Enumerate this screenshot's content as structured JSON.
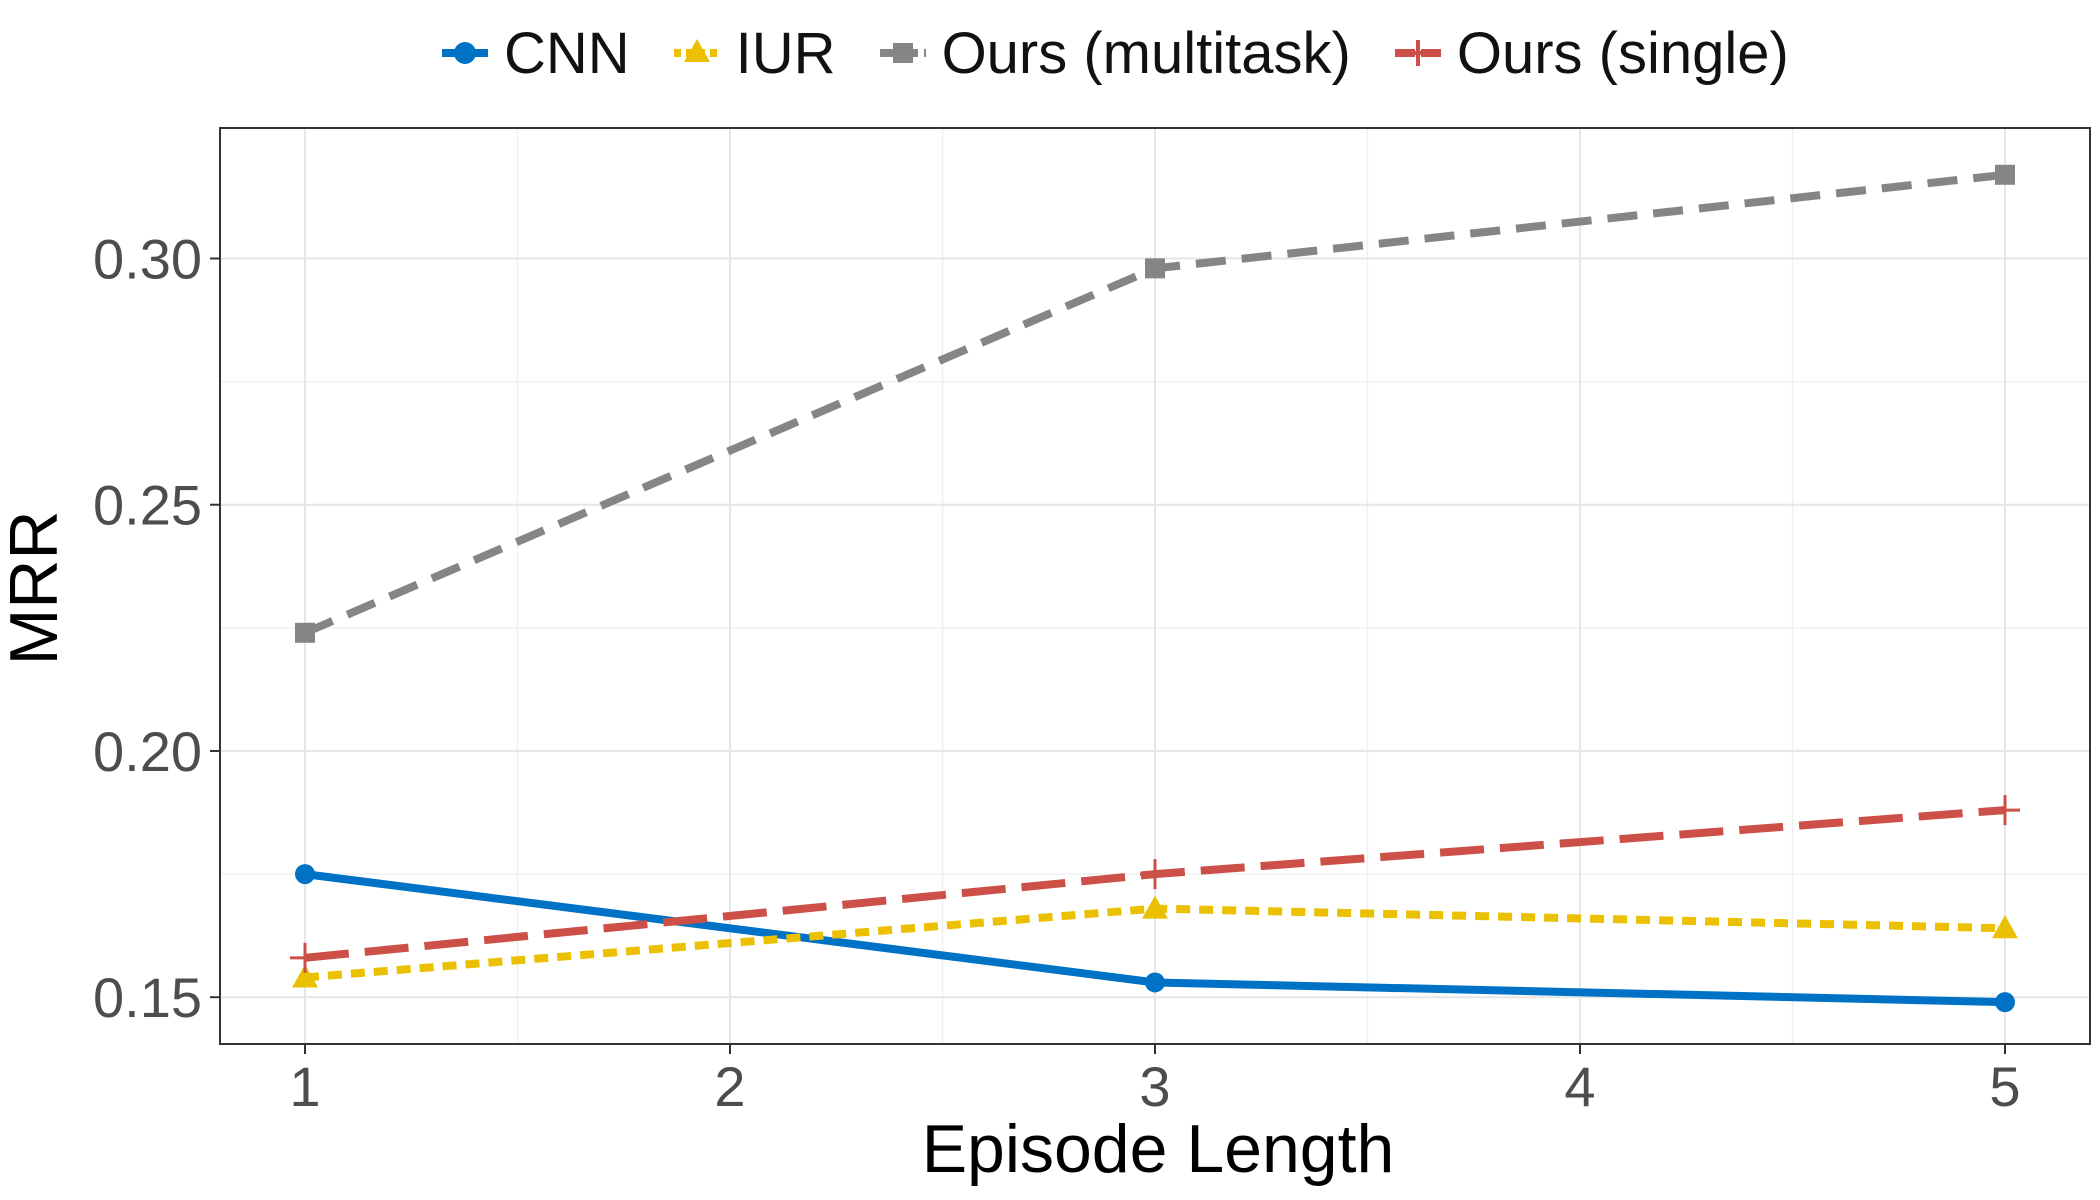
{
  "chart_data": {
    "type": "line",
    "xlabel": "Episode Length",
    "ylabel": "MRR",
    "x": [
      1,
      3,
      5
    ],
    "xticks": [
      "1",
      "2",
      "3",
      "4",
      "5"
    ],
    "xlim": [
      0.8,
      5.2
    ],
    "ylim": [
      0.1405,
      0.3265
    ],
    "yticks": [
      0.15,
      0.2,
      0.25,
      0.3
    ],
    "ytick_labels": [
      "0.15",
      "0.20",
      "0.25",
      "0.30"
    ],
    "grid": true,
    "legend_position": "top",
    "series": [
      {
        "name": "CNN",
        "color": "#0072C6",
        "marker": "circle",
        "dash": "solid",
        "values": [
          0.175,
          0.153,
          0.149
        ]
      },
      {
        "name": "IUR",
        "color": "#EBC000",
        "marker": "triangle",
        "dash": "dotted",
        "values": [
          0.154,
          0.168,
          0.164
        ]
      },
      {
        "name": "Ours (multitask)",
        "color": "#858585",
        "marker": "square",
        "dash": "dashed",
        "values": [
          0.224,
          0.298,
          0.317
        ]
      },
      {
        "name": "Ours (single)",
        "color": "#CC5048",
        "marker": "plus",
        "dash": "longdash",
        "values": [
          0.158,
          0.175,
          0.188
        ]
      }
    ]
  }
}
